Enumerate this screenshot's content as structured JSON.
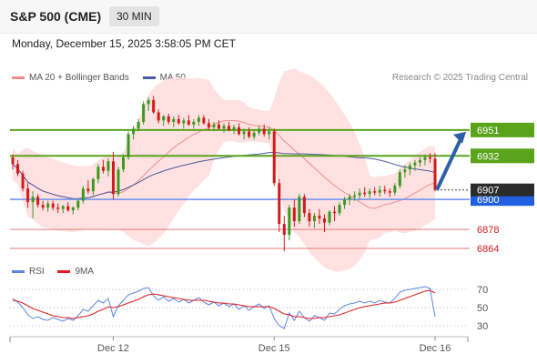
{
  "header": {
    "symbol": "S&P 500 (CME)",
    "timeframe": "30 MIN",
    "datetime": "Monday, December 15, 2025 3:58:05 PM CET"
  },
  "legend": {
    "bb_label": "MA 20 + Bollinger Bands",
    "ma50_label": "MA 50",
    "rsi_label": "RSI",
    "rsi_ma_label": "9MA"
  },
  "research_note": "Research © 2025 Trading Central",
  "colors": {
    "up": "#3a9a1f",
    "down": "#d21b1b",
    "resistance": "#5aa41c",
    "support": "#6b8ff0",
    "target_line": "#e07a7a",
    "band_fill": "#ffdcdc",
    "ma20": "#f28b8b",
    "ma50": "#4b5b9e",
    "rsi": "#5b86e5",
    "rsi_ma": "#e02020",
    "arrow": "#2d5fa8",
    "current_price_bg": "#2b2b2b"
  },
  "chart_data": [
    {
      "type": "candlestick",
      "x_labels": [
        "Dec 12",
        "Dec 15",
        "Dec 16"
      ],
      "ylim": [
        6858,
        6985
      ],
      "grid": false,
      "legend_placement": "top-left",
      "levels": [
        {
          "label": "6951",
          "value": 6951,
          "kind": "resistance"
        },
        {
          "label": "6932",
          "value": 6932,
          "kind": "resistance"
        },
        {
          "label": "6900",
          "value": 6900,
          "kind": "pivot"
        },
        {
          "label": "6878",
          "value": 6878,
          "kind": "support"
        },
        {
          "label": "6864",
          "value": 6864,
          "kind": "support"
        }
      ],
      "current_price": {
        "label": "6907",
        "value": 6907
      },
      "projection": {
        "from": 6907,
        "to": 6951
      },
      "candles": [
        [
          6931,
          6933,
          6922,
          6926
        ],
        [
          6926,
          6929,
          6917,
          6919
        ],
        [
          6919,
          6921,
          6906,
          6908
        ],
        [
          6908,
          6912,
          6894,
          6898
        ],
        [
          6898,
          6906,
          6886,
          6902
        ],
        [
          6902,
          6904,
          6894,
          6896
        ],
        [
          6896,
          6899,
          6892,
          6894
        ],
        [
          6894,
          6899,
          6891,
          6897
        ],
        [
          6897,
          6899,
          6892,
          6894
        ],
        [
          6894,
          6897,
          6890,
          6893
        ],
        [
          6893,
          6896,
          6890,
          6895
        ],
        [
          6895,
          6898,
          6891,
          6892
        ],
        [
          6892,
          6895,
          6889,
          6894
        ],
        [
          6894,
          6900,
          6892,
          6899
        ],
        [
          6899,
          6910,
          6897,
          6908
        ],
        [
          6908,
          6914,
          6904,
          6906
        ],
        [
          6906,
          6916,
          6903,
          6915
        ],
        [
          6915,
          6926,
          6912,
          6924
        ],
        [
          6924,
          6929,
          6919,
          6921
        ],
        [
          6921,
          6930,
          6917,
          6928
        ],
        [
          6928,
          6935,
          6900,
          6904
        ],
        [
          6904,
          6924,
          6902,
          6922
        ],
        [
          6922,
          6933,
          6920,
          6931
        ],
        [
          6931,
          6950,
          6929,
          6948
        ],
        [
          6948,
          6954,
          6944,
          6952
        ],
        [
          6952,
          6959,
          6950,
          6957
        ],
        [
          6957,
          6972,
          6955,
          6970
        ],
        [
          6970,
          6975,
          6965,
          6973
        ],
        [
          6973,
          6976,
          6963,
          6964
        ],
        [
          6964,
          6966,
          6956,
          6958
        ],
        [
          6958,
          6962,
          6954,
          6961
        ],
        [
          6961,
          6963,
          6955,
          6957
        ],
        [
          6957,
          6961,
          6953,
          6959
        ],
        [
          6959,
          6962,
          6955,
          6956
        ],
        [
          6956,
          6960,
          6952,
          6958
        ],
        [
          6958,
          6962,
          6954,
          6955
        ],
        [
          6955,
          6959,
          6952,
          6957
        ],
        [
          6957,
          6962,
          6954,
          6960
        ],
        [
          6960,
          6962,
          6955,
          6956
        ],
        [
          6956,
          6959,
          6951,
          6953
        ],
        [
          6953,
          6957,
          6950,
          6955
        ],
        [
          6955,
          6958,
          6951,
          6952
        ],
        [
          6952,
          6956,
          6949,
          6954
        ],
        [
          6954,
          6957,
          6950,
          6951
        ],
        [
          6951,
          6955,
          6948,
          6953
        ],
        [
          6953,
          6956,
          6947,
          6948
        ],
        [
          6948,
          6952,
          6944,
          6950
        ],
        [
          6950,
          6953,
          6945,
          6946
        ],
        [
          6946,
          6951,
          6944,
          6949
        ],
        [
          6949,
          6954,
          6947,
          6952
        ],
        [
          6952,
          6955,
          6946,
          6948
        ],
        [
          6948,
          6953,
          6944,
          6950
        ],
        [
          6950,
          6952,
          6910,
          6912
        ],
        [
          6912,
          6915,
          6876,
          6882
        ],
        [
          6882,
          6888,
          6862,
          6874
        ],
        [
          6874,
          6896,
          6870,
          6894
        ],
        [
          6894,
          6900,
          6880,
          6884
        ],
        [
          6884,
          6904,
          6882,
          6902
        ],
        [
          6902,
          6904,
          6887,
          6890
        ],
        [
          6890,
          6893,
          6880,
          6884
        ],
        [
          6884,
          6890,
          6879,
          6888
        ],
        [
          6888,
          6893,
          6882,
          6886
        ],
        [
          6886,
          6889,
          6876,
          6883
        ],
        [
          6883,
          6892,
          6881,
          6891
        ],
        [
          6891,
          6895,
          6884,
          6890
        ],
        [
          6890,
          6898,
          6888,
          6896
        ],
        [
          6896,
          6902,
          6893,
          6900
        ],
        [
          6900,
          6904,
          6896,
          6902
        ],
        [
          6902,
          6906,
          6899,
          6903
        ],
        [
          6903,
          6908,
          6900,
          6905
        ],
        [
          6905,
          6909,
          6902,
          6904
        ],
        [
          6904,
          6908,
          6901,
          6906
        ],
        [
          6906,
          6909,
          6903,
          6905
        ],
        [
          6905,
          6910,
          6902,
          6907
        ],
        [
          6907,
          6910,
          6904,
          6906
        ],
        [
          6906,
          6908,
          6902,
          6905
        ],
        [
          6905,
          6912,
          6903,
          6910
        ],
        [
          6910,
          6922,
          6908,
          6920
        ],
        [
          6920,
          6925,
          6916,
          6922
        ],
        [
          6922,
          6927,
          6918,
          6925
        ],
        [
          6925,
          6929,
          6921,
          6927
        ],
        [
          6927,
          6931,
          6924,
          6929
        ],
        [
          6929,
          6933,
          6925,
          6931
        ],
        [
          6931,
          6934,
          6927,
          6930
        ],
        [
          6930,
          6934,
          6906,
          6907
        ]
      ]
    },
    {
      "type": "line",
      "name": "RSI",
      "y_ticks": [
        "70",
        "50",
        "30"
      ],
      "ylim": [
        20,
        80
      ],
      "rsi": [
        60,
        56,
        50,
        42,
        38,
        40,
        37,
        36,
        39,
        37,
        35,
        38,
        36,
        41,
        48,
        46,
        52,
        58,
        55,
        60,
        40,
        52,
        58,
        64,
        66,
        68,
        71,
        72,
        63,
        58,
        62,
        57,
        60,
        56,
        59,
        55,
        58,
        61,
        56,
        53,
        56,
        52,
        55,
        51,
        54,
        48,
        52,
        47,
        51,
        54,
        49,
        52,
        38,
        30,
        27,
        44,
        36,
        46,
        39,
        35,
        41,
        39,
        36,
        44,
        43,
        48,
        52,
        54,
        55,
        57,
        55,
        57,
        55,
        58,
        56,
        55,
        60,
        67,
        69,
        70,
        71,
        72,
        73,
        71,
        40
      ],
      "rsi_ma": [
        58,
        57,
        55,
        52,
        49,
        47,
        45,
        43,
        41,
        40,
        39,
        39,
        38,
        39,
        40,
        41,
        43,
        46,
        48,
        51,
        50,
        51,
        53,
        55,
        57,
        59,
        62,
        64,
        65,
        64,
        63,
        62,
        61,
        60,
        59,
        58,
        58,
        58,
        58,
        57,
        56,
        55,
        55,
        54,
        54,
        53,
        52,
        51,
        51,
        51,
        51,
        51,
        49,
        46,
        43,
        42,
        40,
        40,
        39,
        38,
        38,
        39,
        39,
        40,
        41,
        42,
        44,
        46,
        48,
        50,
        51,
        52,
        53,
        54,
        55,
        55,
        56,
        58,
        60,
        62,
        64,
        66,
        68,
        69,
        66
      ]
    }
  ]
}
